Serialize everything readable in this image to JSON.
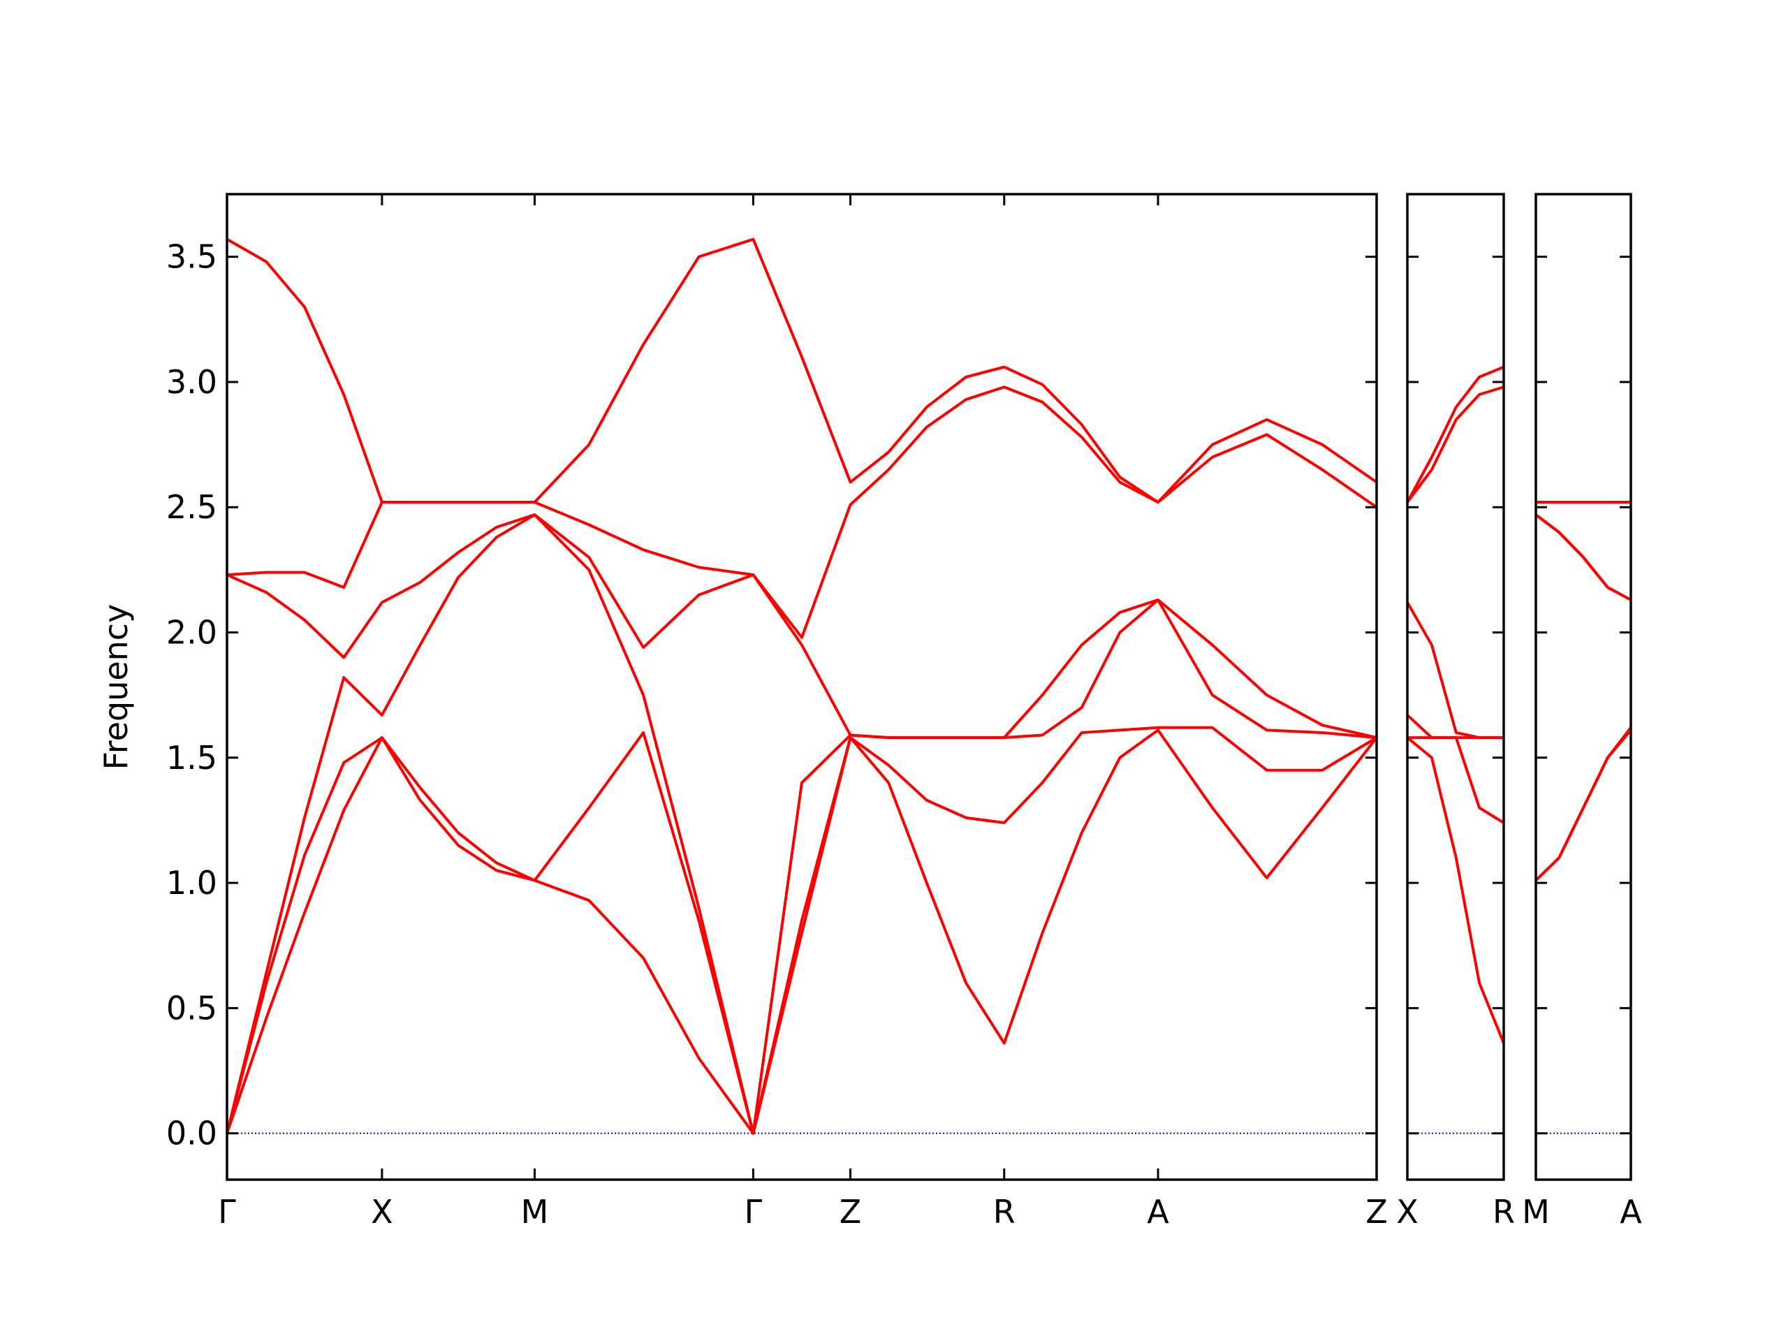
{
  "chart_data": [
    {
      "type": "line",
      "ylabel": "Frequency",
      "color": "#ff0000",
      "x": [
        0,
        0.34,
        0.67,
        1.01,
        1.34,
        1.67,
        2.0,
        2.33,
        2.66,
        3.13,
        3.6,
        4.08,
        4.55,
        4.97,
        5.39,
        5.72,
        6.05,
        6.39,
        6.72,
        7.05,
        7.39,
        7.72,
        8.05,
        8.52,
        8.99,
        9.47,
        9.94
      ],
      "series": [
        {
          "values": [
            0,
            0.46,
            0.88,
            1.29,
            1.58,
            1.33,
            1.15,
            1.05,
            1.01,
            0.93,
            0.7,
            0.3,
            0,
            0.8,
            1.58,
            1.4,
            1.0,
            0.6,
            0.36,
            0.8,
            1.2,
            1.5,
            1.61,
            1.3,
            1.02,
            1.3,
            1.58
          ]
        },
        {
          "values": [
            0,
            0.6,
            1.11,
            1.48,
            1.58,
            1.38,
            1.2,
            1.08,
            1.01,
            1.3,
            1.6,
            0.85,
            0,
            0.85,
            1.58,
            1.47,
            1.33,
            1.26,
            1.24,
            1.4,
            1.6,
            1.61,
            1.62,
            1.62,
            1.45,
            1.45,
            1.58
          ]
        },
        {
          "values": [
            0,
            0.64,
            1.26,
            1.82,
            1.67,
            1.95,
            2.22,
            2.38,
            2.47,
            2.25,
            1.75,
            0.9,
            0,
            1.4,
            1.59,
            1.58,
            1.58,
            1.58,
            1.58,
            1.59,
            1.7,
            2.0,
            2.13,
            1.75,
            1.61,
            1.6,
            1.58
          ]
        },
        {
          "values": [
            2.23,
            2.16,
            2.05,
            1.9,
            2.12,
            2.2,
            2.32,
            2.42,
            2.47,
            2.3,
            1.94,
            2.15,
            2.23,
            1.95,
            1.59,
            1.58,
            1.58,
            1.58,
            1.58,
            1.75,
            1.95,
            2.08,
            2.13,
            1.95,
            1.75,
            1.63,
            1.58
          ]
        },
        {
          "values": [
            2.23,
            2.24,
            2.24,
            2.18,
            2.52,
            2.52,
            2.52,
            2.52,
            2.52,
            2.43,
            2.33,
            2.26,
            2.23,
            1.98,
            2.51,
            2.65,
            2.82,
            2.93,
            2.98,
            2.92,
            2.78,
            2.6,
            2.52,
            2.7,
            2.79,
            2.65,
            2.5
          ]
        },
        {
          "values": [
            3.57,
            3.48,
            3.3,
            2.95,
            2.52,
            2.52,
            2.52,
            2.52,
            2.52,
            2.75,
            3.15,
            3.5,
            3.57,
            3.1,
            2.6,
            2.72,
            2.9,
            3.02,
            3.06,
            2.99,
            2.83,
            2.62,
            2.52,
            2.75,
            2.85,
            2.75,
            2.6
          ]
        }
      ],
      "xlim": [
        0,
        9.94
      ],
      "xticks": [
        {
          "value": 0,
          "label": "Γ"
        },
        {
          "value": 1.34,
          "label": "X"
        },
        {
          "value": 2.66,
          "label": "M"
        },
        {
          "value": 4.55,
          "label": "Γ"
        },
        {
          "value": 5.39,
          "label": "Z"
        },
        {
          "value": 6.72,
          "label": "R"
        },
        {
          "value": 8.05,
          "label": "A"
        },
        {
          "value": 9.94,
          "label": "Z"
        }
      ],
      "ylim": [
        -0.185,
        3.75
      ],
      "yticks": [
        {
          "value": 0,
          "label": "0.0"
        },
        0.5,
        {
          "value": 1,
          "label": "1.0"
        },
        1.5,
        {
          "value": 2,
          "label": "2.0"
        },
        2.5,
        {
          "value": 3,
          "label": "3.0"
        },
        3.5
      ],
      "hline": 0,
      "hline_color": "#0000ff"
    },
    {
      "type": "line",
      "color": "#ff0000",
      "x": [
        0,
        0.21,
        0.42,
        0.62,
        0.83
      ],
      "series": [
        {
          "values": [
            1.58,
            1.5,
            1.1,
            0.6,
            0.36
          ]
        },
        {
          "values": [
            1.58,
            1.58,
            1.58,
            1.3,
            1.24
          ]
        },
        {
          "values": [
            1.67,
            1.58,
            1.58,
            1.58,
            1.58
          ]
        },
        {
          "values": [
            2.12,
            1.95,
            1.6,
            1.58,
            1.58
          ]
        },
        {
          "values": [
            2.52,
            2.65,
            2.85,
            2.95,
            2.98
          ]
        },
        {
          "values": [
            2.52,
            2.7,
            2.9,
            3.02,
            3.06
          ]
        }
      ],
      "xlim": [
        0,
        0.83
      ],
      "xticks": [
        {
          "value": 0,
          "label": "X"
        },
        {
          "value": 0.83,
          "label": "R"
        }
      ],
      "hline": 0,
      "hline_color": "#0000ff"
    },
    {
      "type": "line",
      "color": "#ff0000",
      "x": [
        0,
        0.2,
        0.41,
        0.62,
        0.82
      ],
      "series": [
        {
          "values": [
            1.01,
            1.1,
            1.3,
            1.5,
            1.61
          ]
        },
        {
          "values": [
            1.01,
            1.1,
            1.3,
            1.5,
            1.62
          ]
        },
        {
          "values": [
            2.47,
            2.4,
            2.3,
            2.18,
            2.13
          ]
        },
        {
          "values": [
            2.47,
            2.4,
            2.3,
            2.18,
            2.13
          ]
        },
        {
          "values": [
            2.52,
            2.52,
            2.52,
            2.52,
            2.52
          ]
        },
        {
          "values": [
            2.52,
            2.52,
            2.52,
            2.52,
            2.52
          ]
        }
      ],
      "xlim": [
        0,
        0.82
      ],
      "xticks": [
        {
          "value": 0,
          "label": "M"
        },
        {
          "value": 0.82,
          "label": "A"
        }
      ],
      "hline": 0,
      "hline_color": "#0000ff"
    }
  ]
}
